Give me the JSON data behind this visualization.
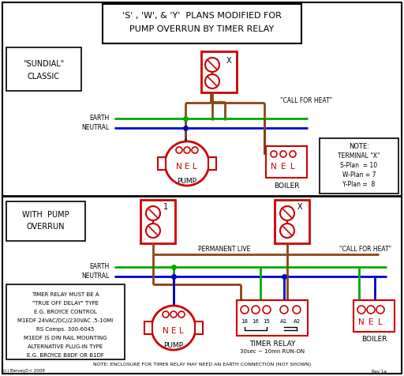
{
  "bg_color": "#ffffff",
  "red": "#cc0000",
  "green": "#00aa00",
  "blue": "#0000cc",
  "brown": "#8B4513",
  "black": "#000000",
  "title_line1": "'S' , 'W', & 'Y'  PLANS MODIFIED FOR",
  "title_line2": "PUMP OVERRUN BY TIMER RELAY",
  "note_lines": [
    "TIMER RELAY MUST BE A",
    "\"TRUE OFF DELAY\" TYPE",
    "E.G. BROYCE CONTROL",
    "M1EDF 24VAC/DC//230VAC .5-10MI",
    "RS Comps. 300-6045",
    "M1EDF IS DIN RAIL MOUNTING",
    "ALTERNATIVE PLUG-IN TYPE",
    "E.G. BROYCE B8DF OR B1DF"
  ],
  "bottom_note": "NOTE: ENCLOSURE FOR TIMER RELAY MAY NEED AN EARTH CONNECTION (NOT SHOWN)",
  "attr_left": "(c) BerveyD< 2009",
  "attr_right": "Rev 1a"
}
